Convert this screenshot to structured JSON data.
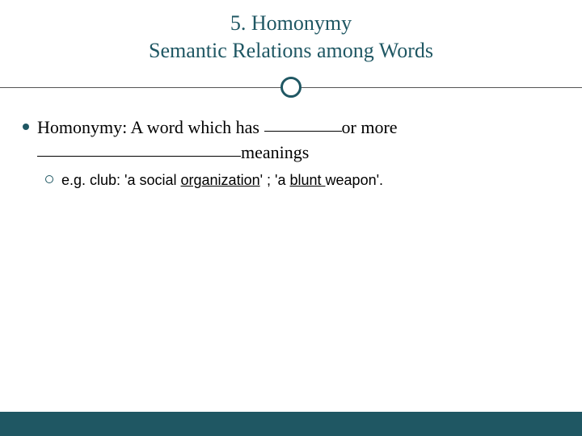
{
  "slide": {
    "title_line1": "5. Homonymy",
    "title_line2": "Semantic Relations among Words",
    "colors": {
      "accent": "#1f5763",
      "text": "#000000",
      "background": "#ffffff",
      "divider_line": "#555555"
    },
    "typography": {
      "title_fontsize": 26,
      "title_family": "Georgia",
      "body_fontsize": 22,
      "body_family": "Georgia",
      "sub_fontsize": 18,
      "sub_family": "Arial"
    },
    "divider": {
      "circle_diameter": 26,
      "circle_border_width": 3,
      "line_height": 1
    },
    "bullet1": {
      "prefix": "Homonymy: A word which has ",
      "blank1_width": 96,
      "mid": "or more ",
      "blank2_width": 252,
      "suffix": "meanings"
    },
    "sub1": {
      "prefix": "e.g. club: 'a social ",
      "underlined1": "organization",
      "mid": "' ; 'a ",
      "underlined2": "blunt ",
      "suffix": "weapon'."
    },
    "footer_bar_height": 30
  }
}
